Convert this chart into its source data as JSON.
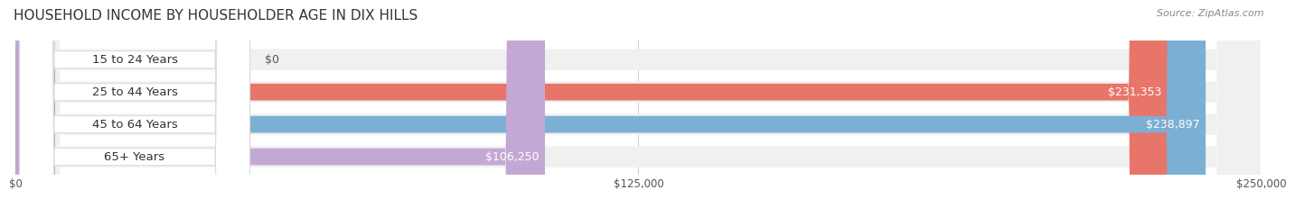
{
  "title": "HOUSEHOLD INCOME BY HOUSEHOLDER AGE IN DIX HILLS",
  "source": "Source: ZipAtlas.com",
  "categories": [
    "15 to 24 Years",
    "25 to 44 Years",
    "45 to 64 Years",
    "65+ Years"
  ],
  "values": [
    0,
    231353,
    238897,
    106250
  ],
  "bar_colors": [
    "#f5c899",
    "#e8756a",
    "#7bafd4",
    "#c4a8d4"
  ],
  "track_bg_color": "#f0f0f0",
  "max_value": 250000,
  "x_ticks": [
    0,
    125000,
    250000
  ],
  "x_tick_labels": [
    "$0",
    "$125,000",
    "$250,000"
  ],
  "title_fontsize": 11,
  "source_fontsize": 8,
  "label_fontsize": 9.5,
  "value_fontsize": 9,
  "background_color": "#ffffff"
}
